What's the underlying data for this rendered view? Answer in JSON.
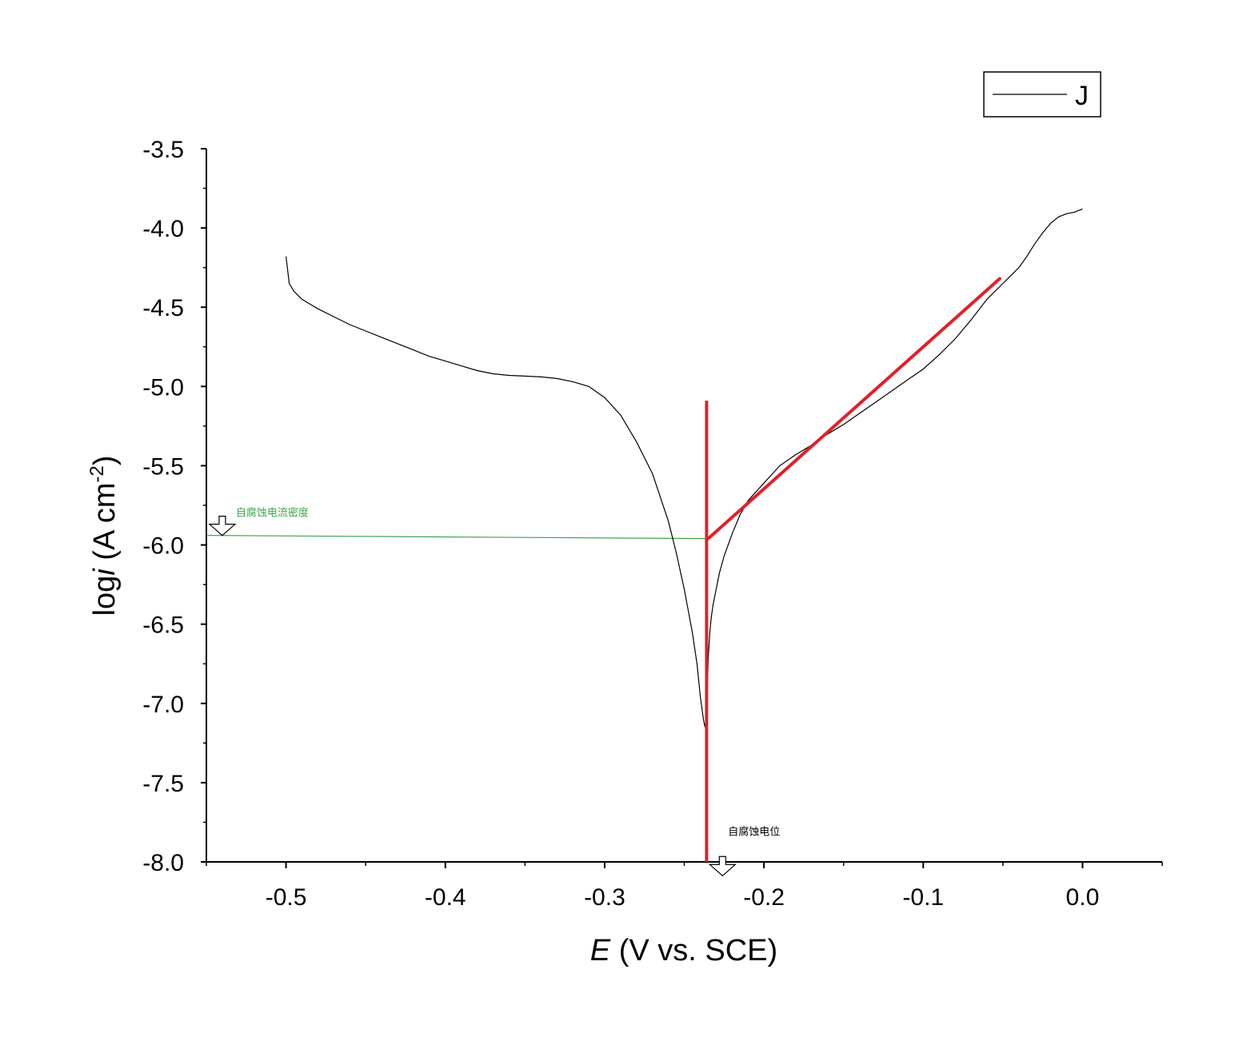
{
  "chart_data": {
    "type": "line",
    "title": "",
    "xlabel": {
      "italic": "E",
      "rest": " (V vs. SCE)"
    },
    "ylabel": {
      "prefix": "log",
      "italic": "i",
      "rest": " (A cm",
      "sup": "-2",
      "close": ")"
    },
    "xlim": [
      -0.55,
      0.05
    ],
    "ylim": [
      -8.0,
      -3.5
    ],
    "xticks": [
      -0.5,
      -0.4,
      -0.3,
      -0.2,
      -0.1,
      0.0
    ],
    "xtick_labels": [
      "-0.5",
      "-0.4",
      "-0.3",
      "-0.2",
      "-0.1",
      "0.0"
    ],
    "yticks": [
      -3.5,
      -4.0,
      -4.5,
      -5.0,
      -5.5,
      -6.0,
      -6.5,
      -7.0,
      -7.5,
      -8.0
    ],
    "ytick_labels": [
      "-3.5",
      "-4.0",
      "-4.5",
      "-5.0",
      "-5.5",
      "-6.0",
      "-6.5",
      "-7.0",
      "-7.5",
      "-8.0"
    ],
    "grid": false,
    "legend": {
      "position": "top-right",
      "entries": [
        "J"
      ]
    },
    "series": [
      {
        "name": "J",
        "color": "#000000",
        "x": [
          -0.5,
          -0.498,
          -0.495,
          -0.49,
          -0.48,
          -0.47,
          -0.46,
          -0.45,
          -0.44,
          -0.43,
          -0.42,
          -0.41,
          -0.4,
          -0.39,
          -0.38,
          -0.37,
          -0.36,
          -0.35,
          -0.34,
          -0.33,
          -0.32,
          -0.31,
          -0.3,
          -0.29,
          -0.28,
          -0.27,
          -0.26,
          -0.255,
          -0.25,
          -0.245,
          -0.242,
          -0.24,
          -0.238,
          -0.237,
          -0.236,
          -0.2355,
          -0.235,
          -0.234,
          -0.233,
          -0.232,
          -0.23,
          -0.228,
          -0.225,
          -0.22,
          -0.215,
          -0.21,
          -0.2,
          -0.19,
          -0.18,
          -0.17,
          -0.16,
          -0.15,
          -0.14,
          -0.13,
          -0.12,
          -0.11,
          -0.1,
          -0.09,
          -0.08,
          -0.07,
          -0.06,
          -0.05,
          -0.04,
          -0.035,
          -0.03,
          -0.025,
          -0.02,
          -0.015,
          -0.01,
          -0.005,
          0.0
        ],
        "y": [
          -4.18,
          -4.35,
          -4.4,
          -4.45,
          -4.51,
          -4.56,
          -4.61,
          -4.65,
          -4.69,
          -4.73,
          -4.77,
          -4.81,
          -4.84,
          -4.87,
          -4.9,
          -4.92,
          -4.93,
          -4.935,
          -4.94,
          -4.95,
          -4.97,
          -5.0,
          -5.07,
          -5.18,
          -5.35,
          -5.55,
          -5.85,
          -6.05,
          -6.28,
          -6.55,
          -6.75,
          -6.95,
          -7.1,
          -7.15,
          -7.08,
          -6.9,
          -6.72,
          -6.55,
          -6.45,
          -6.38,
          -6.28,
          -6.18,
          -6.07,
          -5.93,
          -5.81,
          -5.72,
          -5.61,
          -5.5,
          -5.43,
          -5.37,
          -5.3,
          -5.24,
          -5.17,
          -5.1,
          -5.03,
          -4.96,
          -4.89,
          -4.8,
          -4.7,
          -4.58,
          -4.45,
          -4.35,
          -4.25,
          -4.18,
          -4.1,
          -4.03,
          -3.97,
          -3.93,
          -3.91,
          -3.9,
          -3.88
        ]
      }
    ],
    "tafel_lines": {
      "color": "#e0202a",
      "vertical": {
        "x": -0.236,
        "y": [
          -8.0,
          -5.09
        ]
      },
      "anodic": {
        "x": [
          -0.235,
          -0.052
        ],
        "y": [
          -5.96,
          -4.32
        ]
      }
    },
    "annotations": {
      "icorr": {
        "text": "自腐蚀电流密度",
        "color": "#3da64a",
        "y": -5.95,
        "x_end": -0.236,
        "arrow_x": -0.54
      },
      "ecorr": {
        "text": "自腐蚀电位",
        "color": "#000000",
        "x": -0.226,
        "y": -7.85
      }
    }
  }
}
